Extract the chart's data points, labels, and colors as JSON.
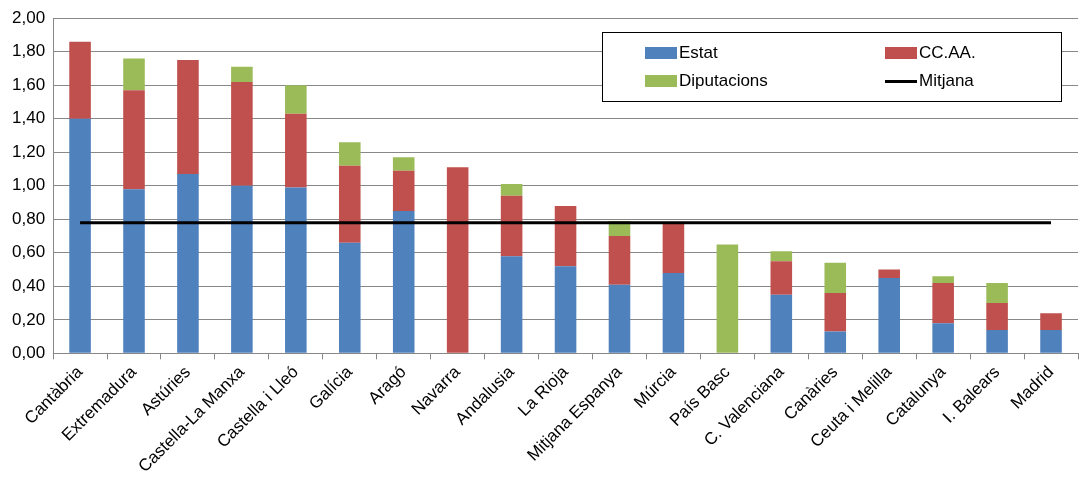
{
  "chart_data": {
    "type": "bar",
    "stacked": true,
    "categories": [
      "Cantàbria",
      "Extremadura",
      "Astúries",
      "Castella-La Manxa",
      "Castella i Lleó",
      "Galícia",
      "Aragó",
      "Navarra",
      "Andalusia",
      "La Rioja",
      "Mitjana Espanya",
      "Múrcia",
      "País Basc",
      "C. Valenciana",
      "Canàries",
      "Ceuta i Melilla",
      "Catalunya",
      "I. Balears",
      "Madrid"
    ],
    "series": [
      {
        "name": "Estat",
        "color": "#4f81bd",
        "values": [
          1.4,
          0.98,
          1.07,
          1.0,
          0.99,
          0.66,
          0.85,
          0,
          0.58,
          0.52,
          0.41,
          0.48,
          0,
          0.35,
          0.13,
          0.45,
          0.18,
          0.14,
          0.14
        ]
      },
      {
        "name": "CC.AA.",
        "color": "#c0504d",
        "values": [
          0.46,
          0.59,
          0.68,
          0.62,
          0.44,
          0.46,
          0.24,
          1.11,
          0.36,
          0.36,
          0.29,
          0.3,
          0,
          0.2,
          0.23,
          0.05,
          0.24,
          0.16,
          0.1
        ]
      },
      {
        "name": "Diputacions",
        "color": "#9bbb59",
        "values": [
          0,
          0.19,
          0,
          0.09,
          0.17,
          0.14,
          0.08,
          0,
          0.07,
          0,
          0.09,
          0,
          0.65,
          0.06,
          0.18,
          0,
          0.04,
          0.12,
          0
        ]
      },
      {
        "name": "Mitjana",
        "type": "line",
        "color": "#000000",
        "marker": "none",
        "values": [
          0.78,
          0.78,
          0.78,
          0.78,
          0.78,
          0.78,
          0.78,
          0.78,
          0.78,
          0.78,
          0.78,
          0.78,
          0.78,
          0.78,
          0.78,
          0.78,
          0.78,
          0.78,
          0.78
        ]
      }
    ],
    "ylim": [
      0,
      2
    ],
    "yticks": [
      {
        "value": 0,
        "label": "0,00"
      },
      {
        "value": 0.2,
        "label": "0,20"
      },
      {
        "value": 0.4,
        "label": "0,40"
      },
      {
        "value": 0.6,
        "label": "0,60"
      },
      {
        "value": 0.8,
        "label": "0,80"
      },
      {
        "value": 1,
        "label": "1,00"
      },
      {
        "value": 1.2,
        "label": "1,20"
      },
      {
        "value": 1.4,
        "label": "1,40"
      },
      {
        "value": 1.6,
        "label": "1,60"
      },
      {
        "value": 1.8,
        "label": "1,80"
      },
      {
        "value": 2,
        "label": "2,00"
      }
    ],
    "grid": "y",
    "legend": "top right"
  }
}
